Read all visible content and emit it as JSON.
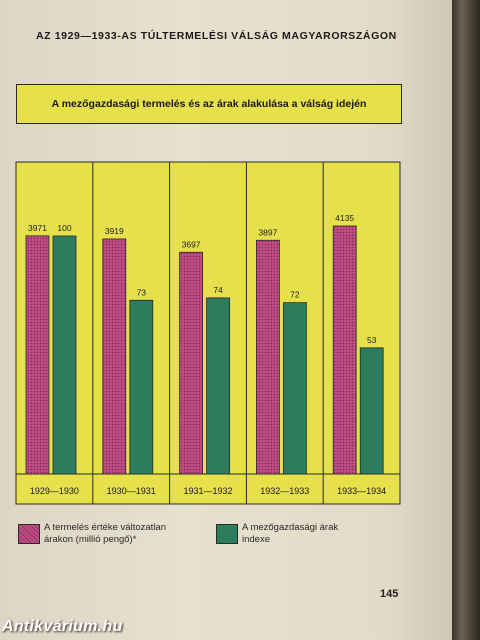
{
  "page": {
    "heading": "AZ 1929—1933-AS TÚLTERMELÉSI VÁLSÁG MAGYARORSZÁGON",
    "page_number": "145",
    "watermark": "Antikvárium.hu"
  },
  "colors": {
    "panel": "#e6e04a",
    "production": "#c04c86",
    "prices": "#2b7d5e"
  },
  "chart_data": {
    "type": "bar",
    "title": "A mezőgazdasági termelés és az árak alakulása a válság idején",
    "categories": [
      "1929—1930",
      "1930—1931",
      "1931—1932",
      "1932—1933",
      "1933—1934"
    ],
    "series": [
      {
        "name": "A termelés értéke változatlan árakon (millió pengő)*",
        "values": [
          3971,
          3919,
          3697,
          3897,
          4135
        ]
      },
      {
        "name": "A mezőgazdasági árak indexe",
        "values": [
          100,
          73,
          74,
          72,
          53
        ]
      }
    ],
    "grid": false,
    "legend": "bottom"
  }
}
